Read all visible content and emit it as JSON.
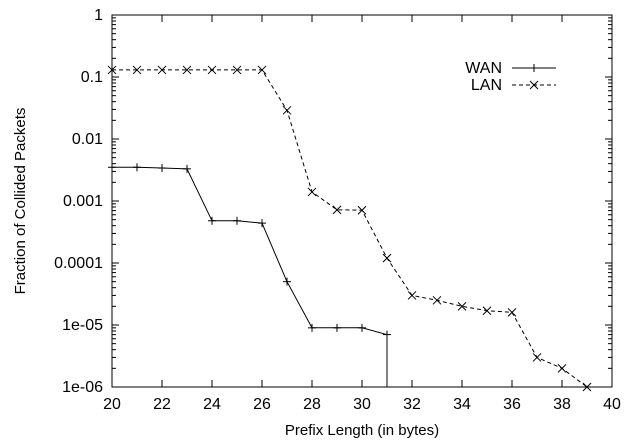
{
  "chart_data": {
    "type": "line",
    "title": "",
    "xlabel": "Prefix Length (in bytes)",
    "ylabel": "Fraction of Collided Packets",
    "xlim": [
      20,
      40
    ],
    "ylim": [
      1e-06,
      1
    ],
    "yscale": "log",
    "grid": false,
    "legend_position": "top-right",
    "xticks": [
      20,
      22,
      24,
      26,
      28,
      30,
      32,
      34,
      36,
      38,
      40
    ],
    "xtick_labels": [
      "20",
      "22",
      "24",
      "26",
      "28",
      "30",
      "32",
      "34",
      "36",
      "38",
      "40"
    ],
    "yticks": [
      1,
      0.1,
      0.01,
      0.001,
      0.0001,
      1e-05,
      1e-06
    ],
    "ytick_labels": [
      "1",
      "0.1",
      "0.01",
      "0.001",
      "0.0001",
      "1e-05",
      "1e-06"
    ],
    "series": [
      {
        "name": "WAN",
        "style": "solid",
        "marker": "plus",
        "color": "#000000",
        "x": [
          20,
          21,
          22,
          23,
          24,
          25,
          26,
          27,
          28,
          29,
          30,
          31
        ],
        "y": [
          0.0035,
          0.0035,
          0.0034,
          0.0033,
          0.00048,
          0.00048,
          0.00044,
          5e-05,
          9e-06,
          9e-06,
          9e-06,
          7e-06
        ],
        "drop_to_axis_at": 31
      },
      {
        "name": "LAN",
        "style": "dashed",
        "marker": "x",
        "color": "#000000",
        "x": [
          20,
          21,
          22,
          23,
          24,
          25,
          26,
          27,
          28,
          29,
          30,
          31,
          32,
          33,
          34,
          35,
          36,
          37,
          38,
          39
        ],
        "y": [
          0.13,
          0.13,
          0.13,
          0.13,
          0.13,
          0.13,
          0.13,
          0.029,
          0.0014,
          0.00072,
          0.00071,
          0.00012,
          3e-05,
          2.5e-05,
          2e-05,
          1.7e-05,
          1.6e-05,
          3e-06,
          2e-06,
          1e-06
        ]
      }
    ]
  }
}
